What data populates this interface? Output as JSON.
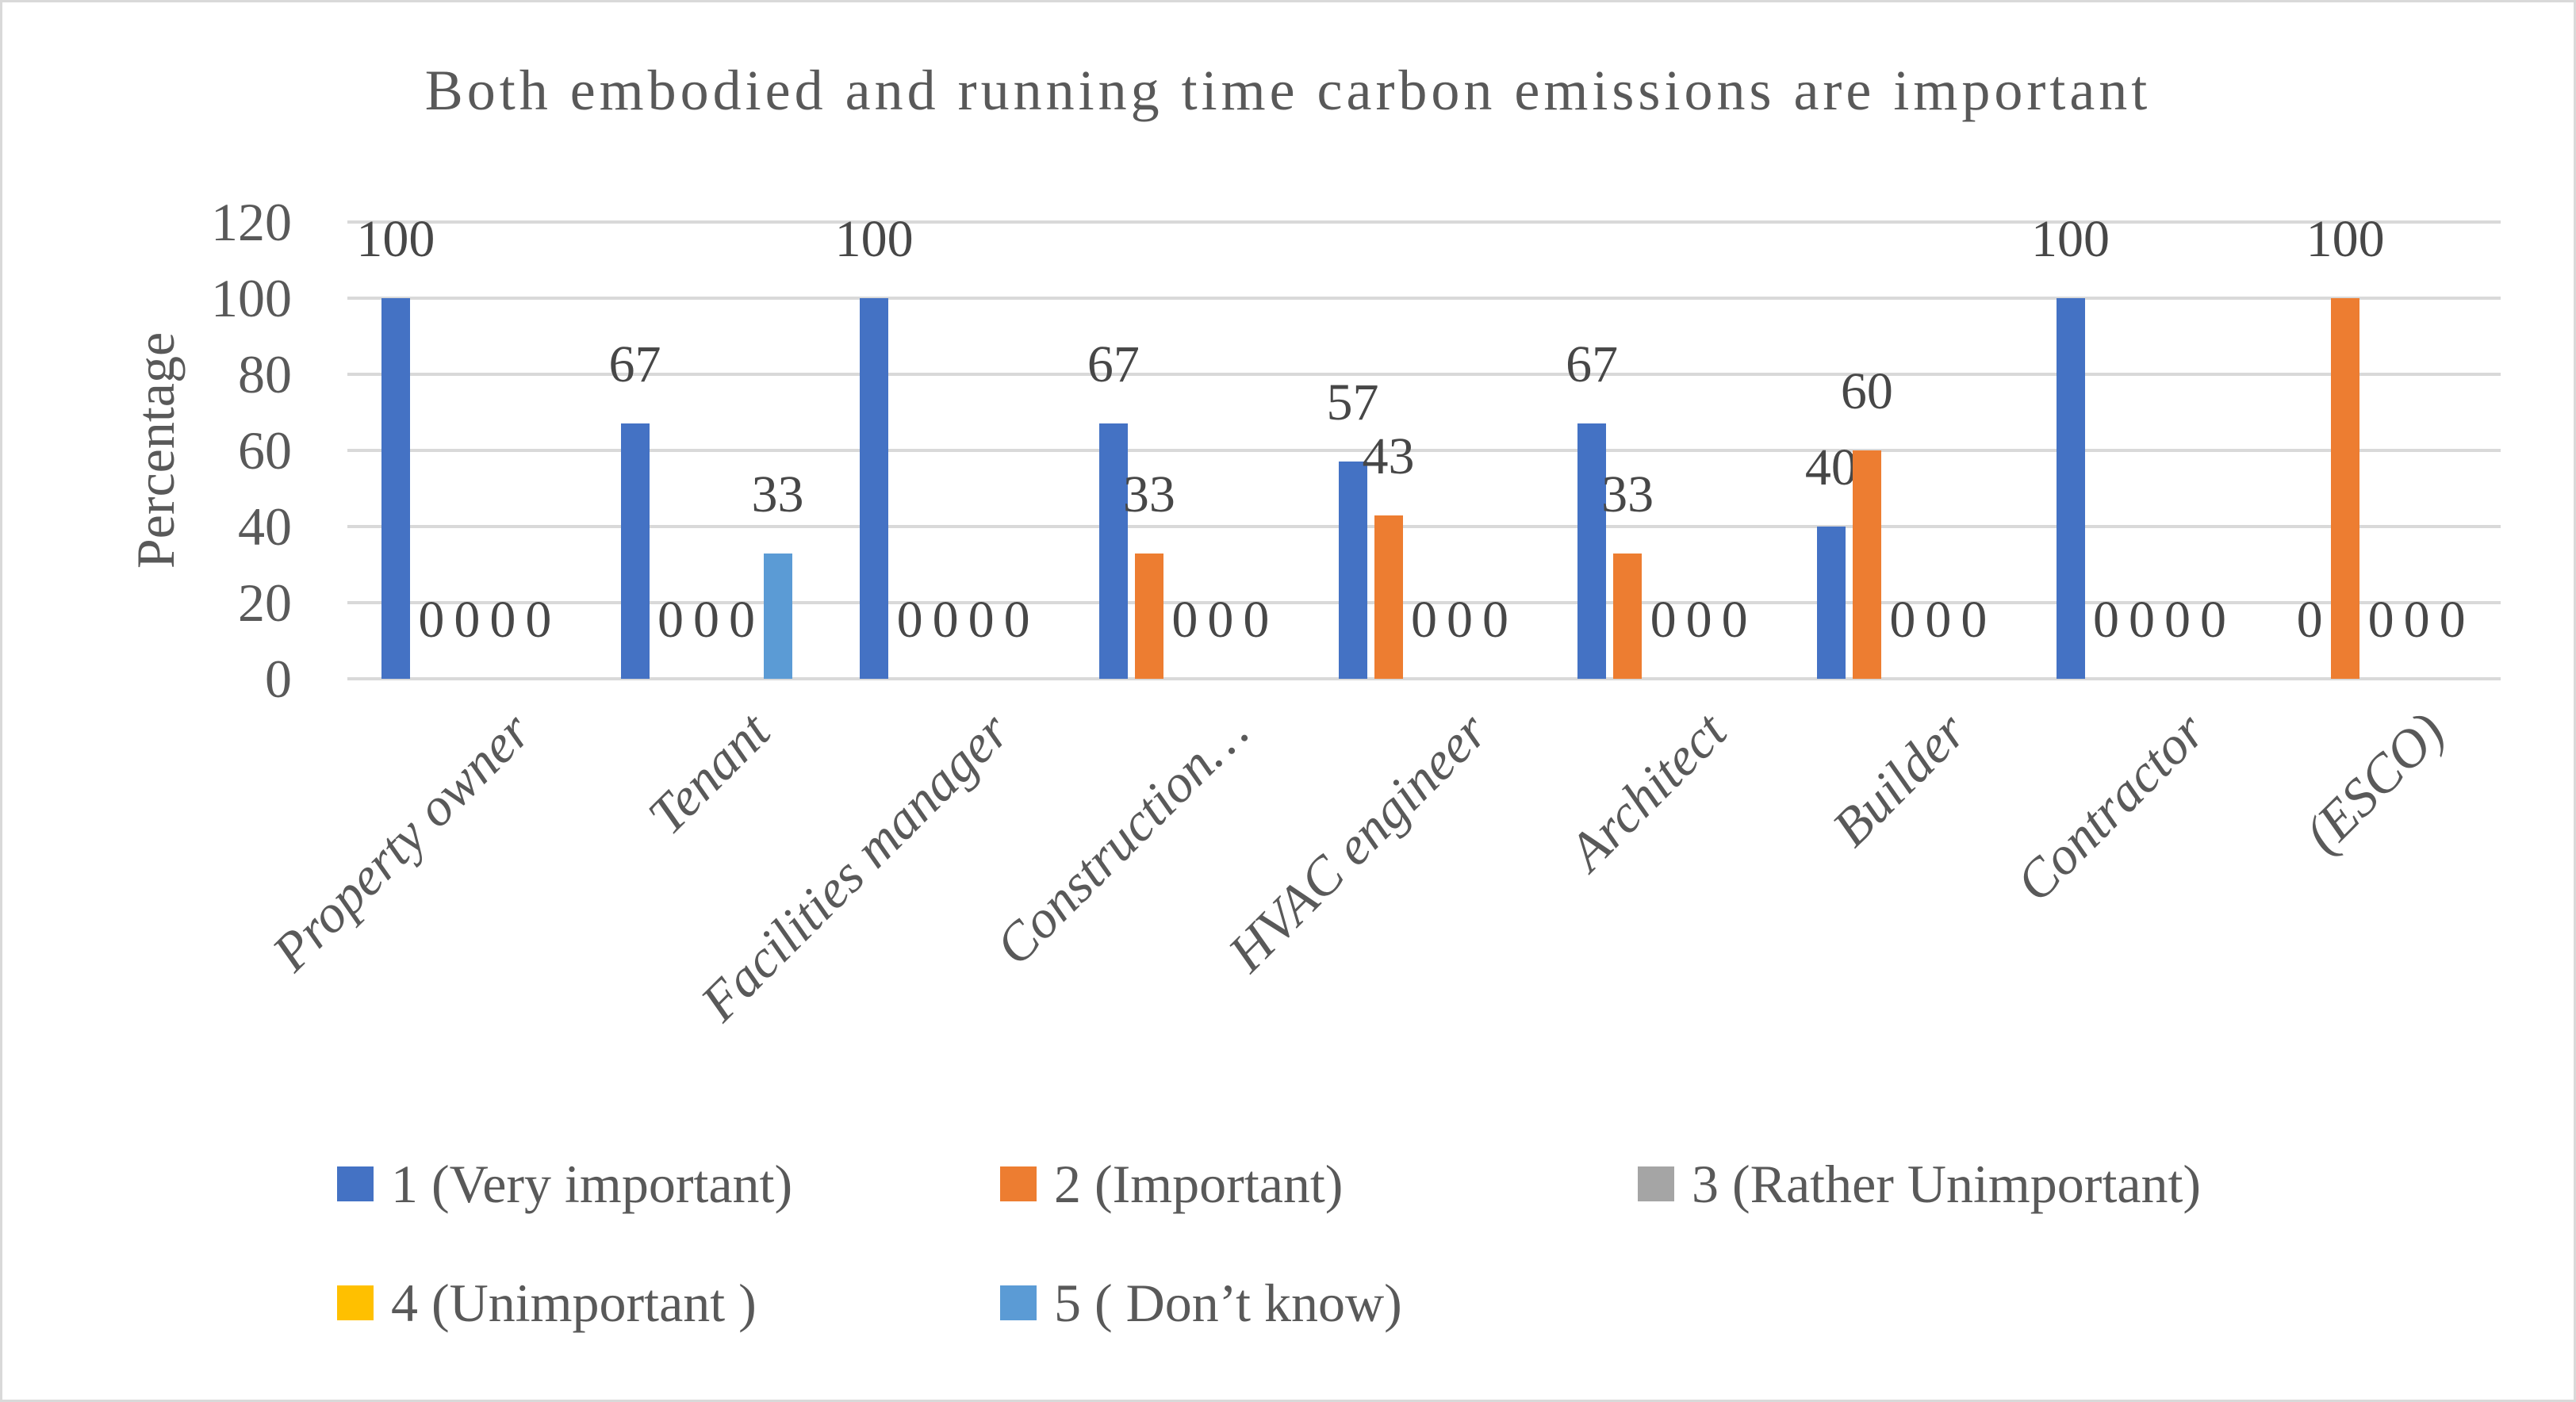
{
  "chart_data": {
    "type": "bar",
    "title": "Both embodied and running time carbon emissions are important",
    "xlabel": "",
    "ylabel": "Percentage",
    "ylim": [
      0,
      120
    ],
    "yticks": [
      0,
      20,
      40,
      60,
      80,
      100,
      120
    ],
    "grid": true,
    "legend_position": "bottom",
    "data_labels": true,
    "categories": [
      "Property owner",
      "Tenant",
      "Facilities manager",
      "Construction…",
      "HVAC engineer",
      "Architect",
      "Builder",
      "Contractor",
      "(ESCO)"
    ],
    "series": [
      {
        "name": "1 (Very important)",
        "color": "#4472C4",
        "values": [
          100,
          67,
          100,
          67,
          57,
          67,
          40,
          100,
          0
        ]
      },
      {
        "name": "2 (Important)",
        "color": "#ED7D31",
        "values": [
          0,
          0,
          0,
          33,
          43,
          33,
          60,
          0,
          100
        ]
      },
      {
        "name": "3 (Rather Unimportant)",
        "color": "#A5A5A5",
        "values": [
          0,
          0,
          0,
          0,
          0,
          0,
          0,
          0,
          0
        ]
      },
      {
        "name": "4 (Unimportant )",
        "color": "#FFC000",
        "values": [
          0,
          0,
          0,
          0,
          0,
          0,
          0,
          0,
          0
        ]
      },
      {
        "name": "5 ( Don’t know)",
        "color": "#5B9BD5",
        "values": [
          0,
          33,
          0,
          0,
          0,
          0,
          0,
          0,
          0
        ]
      }
    ]
  },
  "styles": {
    "text_color": "#595959",
    "data_label_color": "#474747",
    "gridline_color": "#D9D9D9",
    "axis_line_color": "#D9D9D9",
    "border_color": "#D9D9D9",
    "background": "#FFFFFF"
  }
}
